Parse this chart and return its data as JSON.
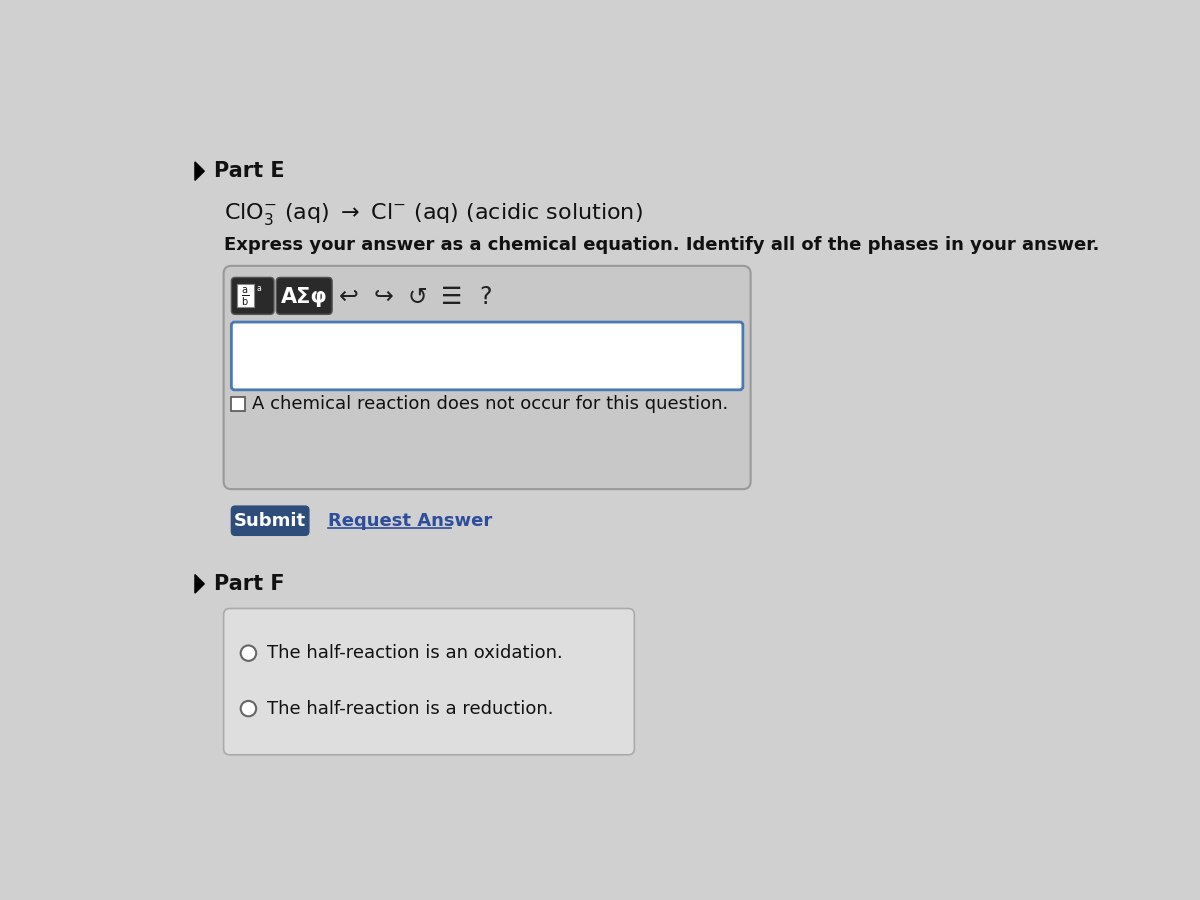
{
  "bg_color": "#d0d0d0",
  "content_bg": "#d8d8d8",
  "part_e_label": "Part E",
  "part_f_label": "Part F",
  "triangle_color": "#000000",
  "instruction_text": "Express your answer as a chemical equation. Identify all of the phases in your answer.",
  "toolbar_text": "AΣφ",
  "input_box_bg": "#ffffff",
  "input_box_border": "#4a7ab5",
  "checkbox_text": "A chemical reaction does not occur for this question.",
  "submit_bg": "#2e4d7b",
  "submit_text": "Submit",
  "submit_text_color": "#ffffff",
  "request_answer_text": "Request Answer",
  "request_answer_color": "#2e4d9b",
  "part_f_option1": "The half-reaction is an oxidation.",
  "part_f_option2": "The half-reaction is a reduction.",
  "font_color": "#111111"
}
